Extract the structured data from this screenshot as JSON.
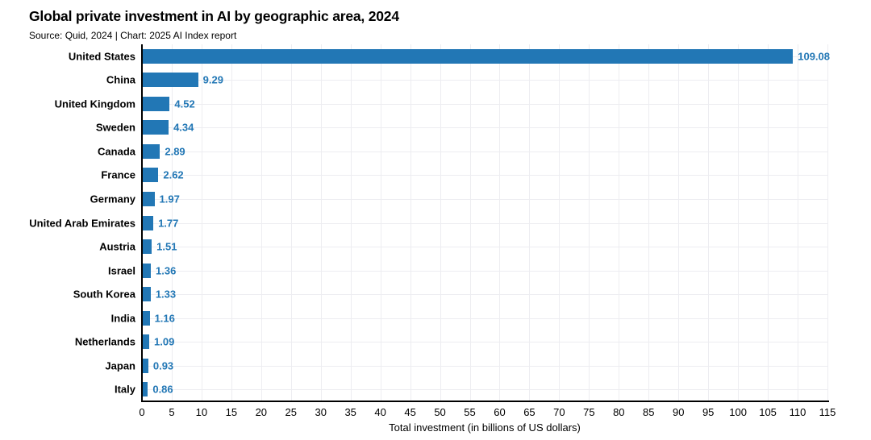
{
  "header": {
    "title": "Global private investment in AI by geographic area, 2024",
    "subtitle": "Source: Quid, 2024 | Chart: 2025 AI Index report"
  },
  "colors": {
    "bar": "#2277b5",
    "value_label": "#2277b5",
    "grid": "#ededf1",
    "axis": "#000000"
  },
  "chart_data": {
    "type": "bar",
    "orientation": "horizontal",
    "title": "Global private investment in AI by geographic area, 2024",
    "subtitle": "Source: Quid, 2024 | Chart: 2025 AI Index report",
    "categories": [
      "United States",
      "China",
      "United Kingdom",
      "Sweden",
      "Canada",
      "France",
      "Germany",
      "United Arab Emirates",
      "Austria",
      "Israel",
      "South Korea",
      "India",
      "Netherlands",
      "Japan",
      "Italy"
    ],
    "values": [
      109.08,
      9.29,
      4.52,
      4.34,
      2.89,
      2.62,
      1.97,
      1.77,
      1.51,
      1.36,
      1.33,
      1.16,
      1.09,
      0.93,
      0.86
    ],
    "value_labels": [
      "109.08",
      "9.29",
      "4.52",
      "4.34",
      "2.89",
      "2.62",
      "1.97",
      "1.77",
      "1.51",
      "1.36",
      "1.33",
      "1.16",
      "1.09",
      "0.93",
      "0.86"
    ],
    "xlabel": "Total investment (in billions of US dollars)",
    "ylabel": "",
    "xlim": [
      0,
      115
    ],
    "xticks": [
      0,
      5,
      10,
      15,
      20,
      25,
      30,
      35,
      40,
      45,
      50,
      55,
      60,
      65,
      70,
      75,
      80,
      85,
      90,
      95,
      100,
      105,
      110,
      115
    ],
    "grid": "both",
    "legend": "none"
  }
}
